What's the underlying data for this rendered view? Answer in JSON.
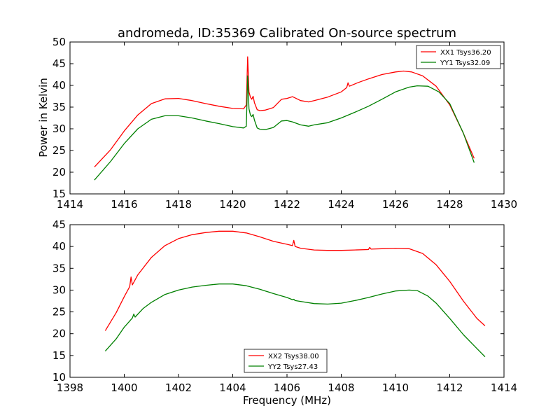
{
  "title": "andromeda, ID:35369 Calibrated On-source spectrum",
  "colors": {
    "red": "#ff0000",
    "green": "#008000",
    "axis": "#000000",
    "background": "#ffffff"
  },
  "chart_data": [
    {
      "type": "line",
      "title": "andromeda, ID:35369 Calibrated On-source spectrum",
      "xlabel": "",
      "ylabel": "Power in Kelvin",
      "xlim": [
        1414,
        1430
      ],
      "ylim": [
        15,
        50
      ],
      "xticks": [
        1414,
        1416,
        1418,
        1420,
        1422,
        1424,
        1426,
        1428,
        1430
      ],
      "yticks": [
        15,
        20,
        25,
        30,
        35,
        40,
        45,
        50
      ],
      "grid": false,
      "legend": "top-right",
      "series": [
        {
          "name": "XX1 Tsys36.20",
          "color": "#ff0000",
          "x": [
            1414.9,
            1415.5,
            1416.0,
            1416.5,
            1417.0,
            1417.5,
            1418.0,
            1418.5,
            1419.0,
            1419.5,
            1420.0,
            1420.4,
            1420.5,
            1420.55,
            1420.6,
            1420.65,
            1420.7,
            1420.75,
            1420.8,
            1420.9,
            1421.0,
            1421.2,
            1421.5,
            1421.8,
            1422.0,
            1422.2,
            1422.5,
            1422.8,
            1423.0,
            1423.5,
            1424.0,
            1424.2,
            1424.25,
            1424.3,
            1424.6,
            1425.0,
            1425.5,
            1426.0,
            1426.3,
            1426.6,
            1427.0,
            1427.5,
            1428.0,
            1428.5,
            1428.9
          ],
          "y": [
            21.2,
            25.2,
            29.5,
            33.2,
            35.8,
            36.9,
            37.0,
            36.5,
            35.8,
            35.2,
            34.7,
            34.6,
            35.5,
            46.6,
            38.5,
            37.3,
            36.8,
            37.5,
            36.0,
            34.4,
            34.2,
            34.3,
            34.9,
            36.8,
            37.0,
            37.4,
            36.5,
            36.2,
            36.5,
            37.3,
            38.5,
            39.5,
            40.6,
            39.8,
            40.6,
            41.5,
            42.5,
            43.1,
            43.3,
            43.1,
            42.2,
            39.8,
            35.5,
            29.0,
            23.2
          ]
        },
        {
          "name": "YY1 Tsys32.09",
          "color": "#008000",
          "x": [
            1414.9,
            1415.5,
            1416.0,
            1416.5,
            1417.0,
            1417.5,
            1418.0,
            1418.5,
            1419.0,
            1419.5,
            1420.0,
            1420.4,
            1420.5,
            1420.55,
            1420.6,
            1420.65,
            1420.7,
            1420.75,
            1420.8,
            1420.9,
            1421.0,
            1421.2,
            1421.5,
            1421.8,
            1422.0,
            1422.2,
            1422.5,
            1422.8,
            1423.0,
            1423.5,
            1424.0,
            1424.5,
            1425.0,
            1425.5,
            1426.0,
            1426.5,
            1426.8,
            1427.2,
            1427.6,
            1428.0,
            1428.5,
            1428.9
          ],
          "y": [
            18.2,
            22.5,
            26.6,
            30.0,
            32.2,
            33.0,
            33.0,
            32.5,
            31.8,
            31.2,
            30.5,
            30.2,
            30.6,
            42.2,
            34.6,
            33.2,
            32.8,
            33.3,
            32.0,
            30.2,
            29.9,
            29.8,
            30.3,
            31.8,
            31.9,
            31.6,
            30.9,
            30.6,
            30.9,
            31.4,
            32.5,
            33.8,
            35.2,
            36.8,
            38.5,
            39.6,
            39.9,
            39.8,
            38.5,
            35.8,
            29.0,
            22.2
          ]
        }
      ]
    },
    {
      "type": "line",
      "title": "",
      "xlabel": "Frequency (MHz)",
      "ylabel": "",
      "xlim": [
        1398,
        1414
      ],
      "ylim": [
        10,
        45
      ],
      "xticks": [
        1398,
        1400,
        1402,
        1404,
        1406,
        1408,
        1410,
        1412,
        1414
      ],
      "yticks": [
        10,
        15,
        20,
        25,
        30,
        35,
        40,
        45
      ],
      "grid": false,
      "legend": "bottom-center",
      "series": [
        {
          "name": "XX2 Tsys38.00",
          "color": "#ff0000",
          "x": [
            1399.3,
            1399.7,
            1400.0,
            1400.2,
            1400.25,
            1400.3,
            1400.5,
            1401.0,
            1401.5,
            1402.0,
            1402.5,
            1403.0,
            1403.5,
            1404.0,
            1404.5,
            1405.0,
            1405.5,
            1406.0,
            1406.2,
            1406.25,
            1406.3,
            1406.5,
            1407.0,
            1407.5,
            1408.0,
            1408.5,
            1409.0,
            1409.05,
            1409.1,
            1409.5,
            1410.0,
            1410.5,
            1411.0,
            1411.5,
            1412.0,
            1412.5,
            1413.0,
            1413.3
          ],
          "y": [
            20.7,
            24.8,
            28.5,
            30.8,
            33.0,
            31.2,
            33.5,
            37.5,
            40.2,
            41.8,
            42.7,
            43.2,
            43.5,
            43.5,
            43.1,
            42.2,
            41.2,
            40.5,
            40.2,
            41.4,
            40.0,
            39.6,
            39.2,
            39.1,
            39.1,
            39.2,
            39.3,
            39.8,
            39.4,
            39.5,
            39.6,
            39.5,
            38.4,
            35.8,
            32.0,
            27.5,
            23.5,
            21.8
          ]
        },
        {
          "name": "YY2 Tsys27.43",
          "color": "#008000",
          "x": [
            1399.3,
            1399.7,
            1400.0,
            1400.3,
            1400.35,
            1400.4,
            1400.7,
            1401.0,
            1401.5,
            1402.0,
            1402.5,
            1403.0,
            1403.5,
            1404.0,
            1404.5,
            1405.0,
            1405.5,
            1406.0,
            1406.2,
            1406.25,
            1406.3,
            1406.5,
            1407.0,
            1407.5,
            1408.0,
            1408.5,
            1409.0,
            1409.5,
            1410.0,
            1410.5,
            1410.8,
            1411.2,
            1411.5,
            1412.0,
            1412.5,
            1413.0,
            1413.3
          ],
          "y": [
            16.0,
            18.8,
            21.5,
            23.6,
            24.5,
            23.8,
            25.8,
            27.2,
            29.0,
            30.0,
            30.7,
            31.1,
            31.4,
            31.4,
            31.0,
            30.2,
            29.2,
            28.3,
            27.8,
            27.9,
            27.6,
            27.4,
            26.9,
            26.8,
            27.0,
            27.6,
            28.3,
            29.1,
            29.8,
            30.0,
            29.9,
            28.6,
            27.0,
            23.5,
            19.8,
            16.6,
            14.7
          ]
        }
      ]
    }
  ]
}
